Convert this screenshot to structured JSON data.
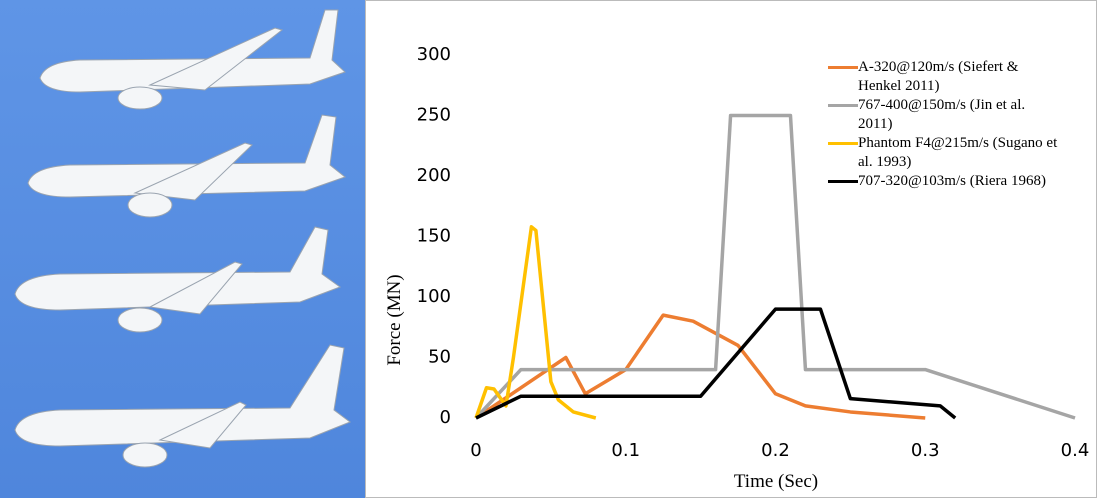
{
  "chart_data": {
    "type": "line",
    "xlabel": "Time (Sec)",
    "ylabel": "Force (MN)",
    "xlim": [
      0,
      0.4
    ],
    "xticks": [
      0,
      0.1,
      0.2,
      0.3,
      0.4
    ],
    "ylim": [
      0,
      300
    ],
    "yticks": [
      0,
      50,
      100,
      150,
      200,
      250,
      300
    ],
    "legend": "upper right",
    "grid": false,
    "series": [
      {
        "name": "A-320@120m/s (Siefert & Henkel 2011)",
        "color": "#ed7d31",
        "x": [
          0,
          0.06,
          0.073,
          0.1,
          0.125,
          0.145,
          0.175,
          0.2,
          0.22,
          0.25,
          0.3
        ],
        "values": [
          0,
          50,
          20,
          40,
          85,
          80,
          60,
          20,
          10,
          5,
          0
        ]
      },
      {
        "name": "767-400@150m/s (Jin et al. 2011)",
        "color": "#a5a5a5",
        "x": [
          0,
          0.03,
          0.16,
          0.17,
          0.21,
          0.22,
          0.3,
          0.4
        ],
        "values": [
          0,
          40,
          40,
          250,
          250,
          40,
          40,
          0
        ]
      },
      {
        "name": "Phantom F4@215m/s (Sugano et al. 1993)",
        "color": "#ffc000",
        "x": [
          0,
          0.007,
          0.012,
          0.02,
          0.025,
          0.037,
          0.04,
          0.05,
          0.055,
          0.065,
          0.08
        ],
        "values": [
          0,
          25,
          24,
          10,
          50,
          158,
          155,
          30,
          15,
          5,
          0
        ]
      },
      {
        "name": "707-320@103m/s (Riera 1968)",
        "color": "#000000",
        "x": [
          0,
          0.03,
          0.15,
          0.2,
          0.23,
          0.25,
          0.31,
          0.32
        ],
        "values": [
          0,
          18,
          18,
          90,
          90,
          16,
          10,
          0
        ]
      }
    ]
  }
}
